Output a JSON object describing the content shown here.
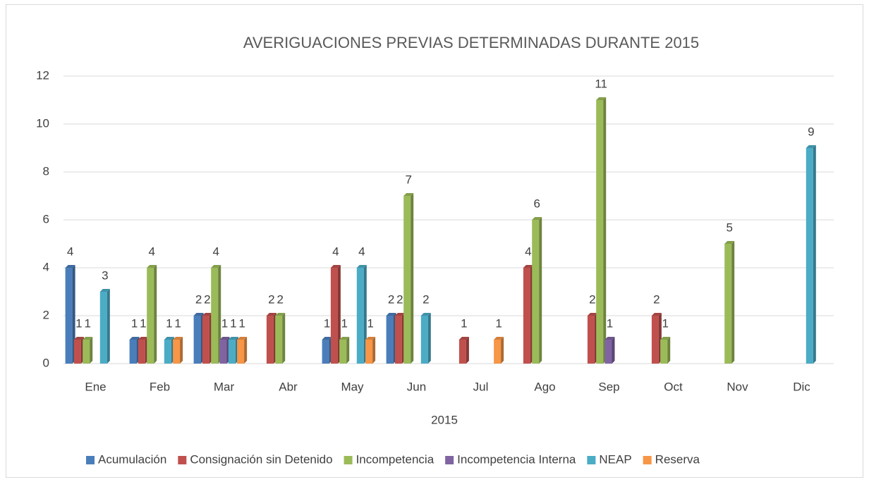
{
  "chart_data": {
    "type": "bar",
    "title": "AVERIGUACIONES  PREVIAS DETERMINADAS DURANTE 2015",
    "x_label": "2015",
    "categories": [
      "Ene",
      "Feb",
      "Mar",
      "Abr",
      "May",
      "Jun",
      "Jul",
      "Ago",
      "Sep",
      "Oct",
      "Nov",
      "Dic"
    ],
    "series": [
      {
        "name": "Acumulación",
        "color": "#4a7ebb",
        "values": [
          4,
          1,
          2,
          null,
          1,
          2,
          null,
          null,
          null,
          null,
          null,
          null
        ]
      },
      {
        "name": "Consignación sin Detenido",
        "color": "#c0504d",
        "values": [
          1,
          1,
          2,
          2,
          4,
          2,
          1,
          4,
          2,
          2,
          null,
          null
        ]
      },
      {
        "name": "Incompetencia",
        "color": "#9bbb59",
        "values": [
          1,
          4,
          4,
          2,
          1,
          7,
          null,
          6,
          11,
          1,
          5,
          null
        ]
      },
      {
        "name": "Incompetencia Interna",
        "color": "#8064a2",
        "values": [
          null,
          null,
          1,
          null,
          null,
          null,
          null,
          null,
          1,
          null,
          null,
          null
        ]
      },
      {
        "name": "NEAP",
        "color": "#4bacc6",
        "values": [
          3,
          1,
          1,
          null,
          4,
          2,
          null,
          null,
          null,
          null,
          null,
          9
        ]
      },
      {
        "name": "Reserva",
        "color": "#f79646",
        "values": [
          null,
          1,
          1,
          null,
          1,
          null,
          1,
          null,
          null,
          null,
          null,
          null
        ]
      }
    ],
    "ylim": [
      0,
      12
    ],
    "yticks": [
      0,
      2,
      4,
      6,
      8,
      10,
      12
    ],
    "grid": true,
    "legend": "bottom"
  }
}
